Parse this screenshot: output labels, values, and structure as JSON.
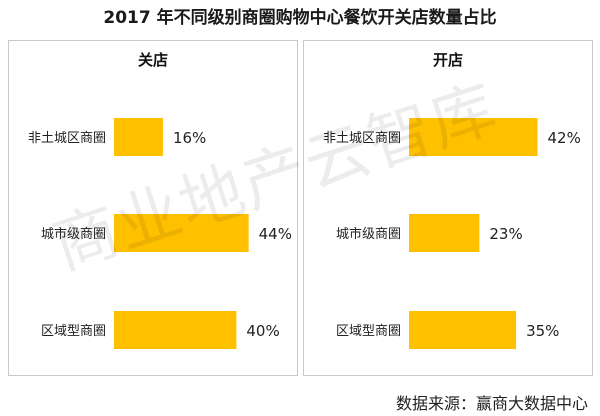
{
  "title": "2017 年不同级别商圈购物中心餐饮开关店数量占比",
  "source": "数据来源：赢商大数据中心",
  "watermark": "商业地产云智库",
  "colors": {
    "bar": "#FFC000",
    "border": "#C9C9C9"
  },
  "chart_data": [
    {
      "type": "bar",
      "orientation": "horizontal",
      "title": "关店",
      "categories": [
        "非土城区商圈",
        "城市级商圈",
        "区域型商圈"
      ],
      "values": [
        16,
        44,
        40
      ],
      "value_labels": [
        "16%",
        "44%",
        "40%"
      ],
      "xlim": [
        0,
        50
      ]
    },
    {
      "type": "bar",
      "orientation": "horizontal",
      "title": "开店",
      "categories": [
        "非土城区商圈",
        "城市级商圈",
        "区域型商圈"
      ],
      "values": [
        42,
        23,
        35
      ],
      "value_labels": [
        "42%",
        "23%",
        "35%"
      ],
      "xlim": [
        0,
        50
      ]
    }
  ]
}
